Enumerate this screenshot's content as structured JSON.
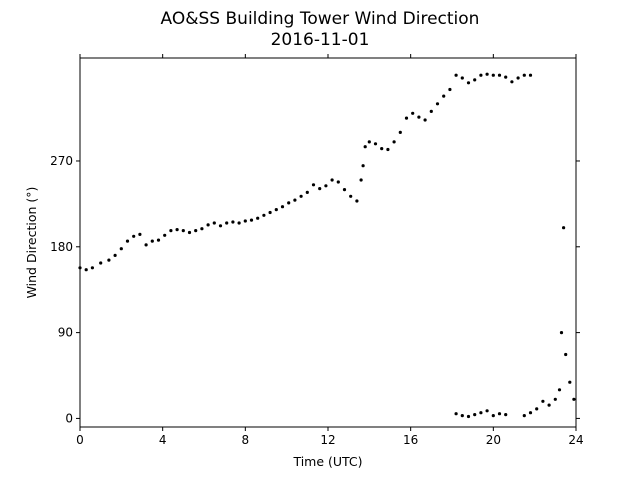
{
  "chart_data": {
    "type": "scatter",
    "title": "AO&SS Building Tower Wind Direction",
    "subtitle": "2016-11-01",
    "xlabel": "Time (UTC)",
    "ylabel": "Wind Direction (°)",
    "xlim": [
      0,
      24
    ],
    "ylim": [
      -9,
      378
    ],
    "xticks": [
      0,
      4,
      8,
      12,
      16,
      20,
      24
    ],
    "yticks": [
      0,
      90,
      180,
      270
    ],
    "grid": false,
    "marker_color": "#000000",
    "series": [
      {
        "x": [
          0.0,
          0.3,
          0.6,
          1.0,
          1.4,
          1.7,
          2.0,
          2.3,
          2.6,
          2.9,
          3.2,
          3.5,
          3.8,
          4.1,
          4.4,
          4.7,
          5.0,
          5.3,
          5.6,
          5.9,
          6.2,
          6.5,
          6.8,
          7.1,
          7.4,
          7.7,
          8.0,
          8.3,
          8.6,
          8.9,
          9.2,
          9.5,
          9.8,
          10.1,
          10.4,
          10.7,
          11.0,
          11.3,
          11.6,
          11.9,
          12.2,
          12.5,
          12.8,
          13.1,
          13.4,
          13.6,
          13.7,
          13.8,
          14.0,
          14.3,
          14.6,
          14.9,
          15.2,
          15.5,
          15.8,
          16.1,
          16.4,
          16.7,
          17.0,
          17.3,
          17.6,
          17.9,
          18.2,
          18.5,
          18.8,
          19.1,
          19.4,
          19.7,
          20.0,
          20.3,
          20.6,
          20.9,
          21.2,
          21.5,
          21.8,
          18.2,
          18.5,
          18.8,
          19.1,
          19.4,
          19.7,
          20.0,
          20.3,
          20.6,
          21.5,
          21.8,
          22.1,
          22.4,
          22.7,
          23.0,
          23.2,
          23.3,
          23.4,
          23.5,
          23.7,
          23.9
        ],
        "y": [
          158,
          156,
          158,
          163,
          166,
          171,
          178,
          186,
          191,
          193,
          182,
          186,
          187,
          192,
          197,
          198,
          197,
          195,
          197,
          199,
          203,
          205,
          202,
          205,
          206,
          205,
          207,
          208,
          210,
          213,
          216,
          219,
          222,
          226,
          229,
          233,
          237,
          245,
          241,
          244,
          250,
          248,
          240,
          233,
          228,
          250,
          265,
          285,
          290,
          288,
          283,
          282,
          290,
          300,
          315,
          320,
          316,
          313,
          322,
          330,
          338,
          345,
          360,
          357,
          352,
          355,
          360,
          361,
          360,
          360,
          358,
          353,
          357,
          360,
          360,
          5,
          3,
          2,
          4,
          6,
          8,
          3,
          5,
          4,
          3,
          6,
          10,
          18,
          14,
          20,
          30,
          90,
          200,
          67,
          38,
          20
        ]
      }
    ]
  }
}
